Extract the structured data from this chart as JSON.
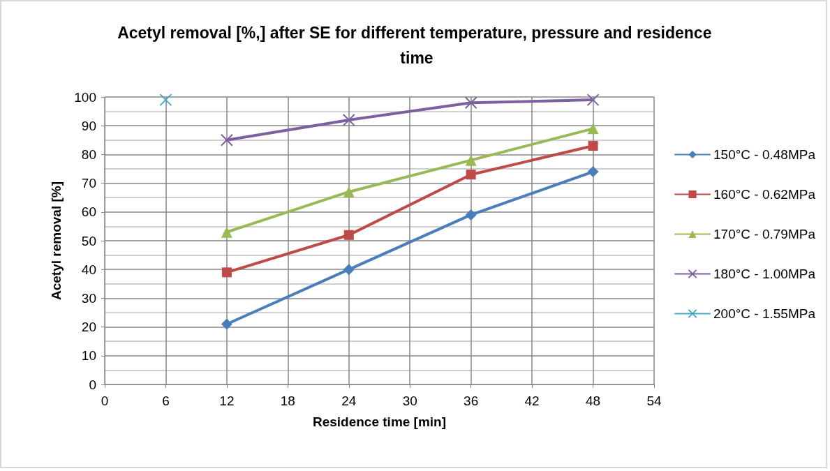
{
  "chart_data": {
    "type": "line",
    "title": "Acetyl removal [%,] after SE for different temperature, pressure and residence time",
    "xlabel": "Residence time [min]",
    "ylabel": "Acetyl removal [%]",
    "xlim": [
      0,
      54
    ],
    "xticks": [
      0,
      6,
      12,
      18,
      24,
      30,
      36,
      42,
      48,
      54
    ],
    "ylim": [
      0,
      100
    ],
    "yticks": [
      0,
      10,
      20,
      30,
      40,
      50,
      60,
      70,
      80,
      90,
      100
    ],
    "grid": true,
    "legend": "right",
    "series": [
      {
        "name": "150°C - 0.48MPa",
        "color": "#4a7ebb",
        "marker": "diamond",
        "x": [
          12,
          24,
          36,
          48
        ],
        "values": [
          21,
          40,
          59,
          74
        ]
      },
      {
        "name": "160°C - 0.62MPa",
        "color": "#be4b48",
        "marker": "square",
        "x": [
          12,
          24,
          36,
          48
        ],
        "values": [
          39,
          52,
          73,
          83
        ]
      },
      {
        "name": "170°C - 0.79MPa",
        "color": "#98b954",
        "marker": "triangle",
        "x": [
          12,
          24,
          36,
          48
        ],
        "values": [
          53,
          67,
          78,
          89
        ]
      },
      {
        "name": "180°C - 1.00MPa",
        "color": "#7d60a0",
        "marker": "cross",
        "x": [
          12,
          24,
          36,
          48
        ],
        "values": [
          85,
          92,
          98,
          99
        ]
      },
      {
        "name": "200°C - 1.55MPa",
        "color": "#46aac5",
        "marker": "cross",
        "x": [
          6
        ],
        "values": [
          99
        ]
      }
    ]
  }
}
